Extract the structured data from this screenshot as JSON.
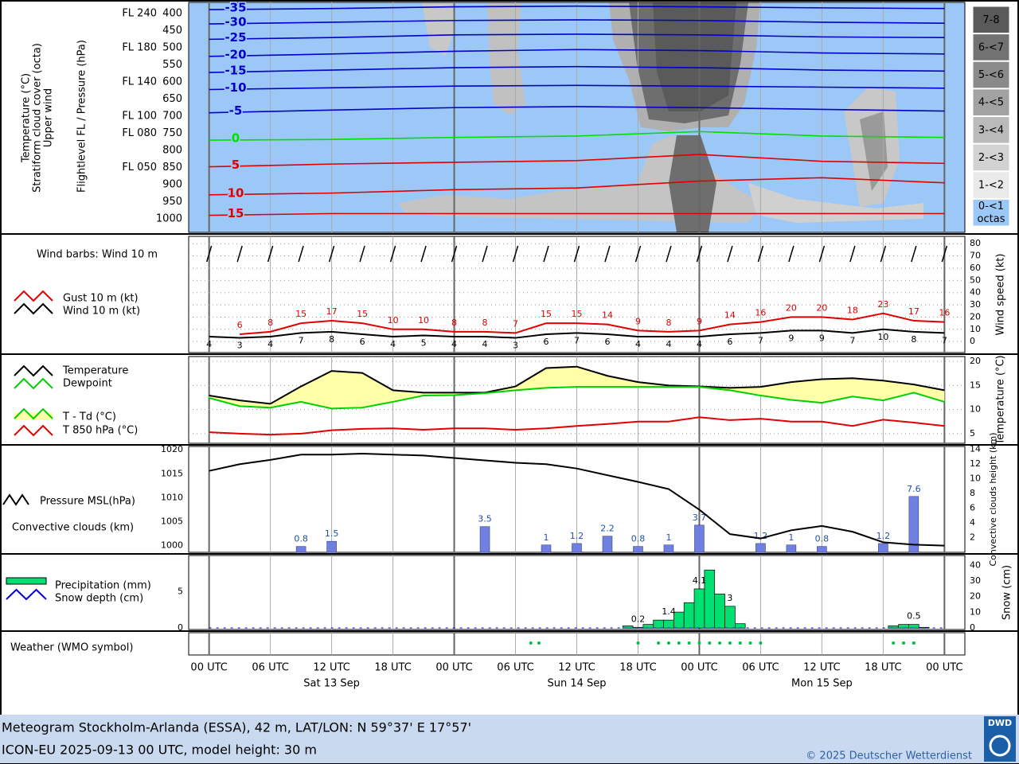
{
  "chart_data": [
    {
      "type": "cross-section",
      "ylabels": [
        "Temperature (°C)",
        "Stratiform cloud cover (octa)",
        "Upper wind"
      ],
      "ylabel2": "Flightlevel FL / Pressure (hPa)",
      "ylim": [
        367,
        1040
      ],
      "yticks": [
        400,
        450,
        500,
        550,
        600,
        650,
        700,
        750,
        800,
        850,
        900,
        950,
        1000
      ],
      "flight_levels": [
        {
          "value": 400,
          "label": "FL 240"
        },
        {
          "value": 500,
          "label": "FL 180"
        },
        {
          "value": 600,
          "label": "FL 140"
        },
        {
          "value": 700,
          "label": "FL 100"
        },
        {
          "value": 750,
          "label": "FL 080"
        },
        {
          "value": 850,
          "label": "FL 050"
        }
      ],
      "x": [
        0,
        12,
        24,
        36,
        48,
        60,
        72
      ],
      "isotherms": [
        {
          "value": -35,
          "color": "#0000c8",
          "values": [
            388,
            385,
            380,
            378,
            380,
            383,
            385
          ]
        },
        {
          "value": -30,
          "color": "#0000c8",
          "values": [
            430,
            425,
            420,
            418,
            420,
            425,
            428
          ]
        },
        {
          "value": -25,
          "color": "#0000c8",
          "values": [
            475,
            470,
            462,
            460,
            462,
            468,
            470
          ]
        },
        {
          "value": -20,
          "color": "#0000c8",
          "values": [
            525,
            518,
            510,
            505,
            508,
            515,
            518
          ]
        },
        {
          "value": -15,
          "color": "#0000c8",
          "values": [
            572,
            565,
            558,
            555,
            558,
            565,
            568
          ]
        },
        {
          "value": -10,
          "color": "#0000c8",
          "values": [
            622,
            617,
            612,
            610,
            612,
            615,
            618
          ]
        },
        {
          "value": -5,
          "color": "#0000c8",
          "values": [
            690,
            682,
            675,
            672,
            675,
            680,
            685
          ]
        },
        {
          "value": 0,
          "color": "#00e000",
          "values": [
            770,
            768,
            762,
            758,
            745,
            758,
            762
          ]
        },
        {
          "value": 5,
          "color": "#e00000",
          "values": [
            848,
            840,
            835,
            830,
            812,
            832,
            838
          ]
        },
        {
          "value": 10,
          "color": "#e00000",
          "values": [
            930,
            925,
            915,
            910,
            890,
            880,
            895
          ]
        },
        {
          "value": 15,
          "color": "#e00000",
          "values": [
            990,
            985,
            985,
            985,
            985,
            985,
            985
          ]
        }
      ],
      "legend": [
        "7-8",
        "6-<7",
        "5-<6",
        "4-<5",
        "3-<4",
        "2-<3",
        "1-<2",
        "0-<1"
      ],
      "legend_colors": [
        "#5a5a5a",
        "#727272",
        "#8a8a8a",
        "#a2a2a2",
        "#bababa",
        "#d2d2d2",
        "#eaeaea",
        "#9cc8f8"
      ],
      "legend_unit": "octas"
    },
    {
      "type": "line",
      "title": "Wind barbs: Wind 10 m",
      "ylabel": "Wind speed (kt)",
      "x": [
        0,
        3,
        6,
        9,
        12,
        15,
        18,
        21,
        24,
        27,
        30,
        33,
        36,
        39,
        42,
        45,
        48,
        51,
        54,
        57,
        60,
        63,
        66,
        69,
        72
      ],
      "ylim": [
        -9,
        86
      ],
      "yticks": [
        0,
        10,
        20,
        30,
        40,
        50,
        60,
        70,
        80
      ],
      "series": [
        {
          "name": "Gust 10 m (kt)",
          "color": "#e00000",
          "x": [
            3,
            6,
            9,
            12,
            15,
            18,
            21,
            24,
            27,
            30,
            33,
            36,
            39,
            42,
            45,
            48,
            51,
            54,
            57,
            60,
            63,
            66,
            69,
            72
          ],
          "values": [
            6,
            8,
            15,
            17,
            15,
            10,
            10,
            8,
            8,
            7,
            15,
            15,
            14,
            9,
            8,
            9,
            14,
            16,
            20,
            20,
            18,
            23,
            17,
            16
          ]
        },
        {
          "name": "Wind 10 m (kt)",
          "color": "#000000",
          "values": [
            4,
            3,
            4,
            7,
            8,
            6,
            4,
            5,
            4,
            4,
            3,
            6,
            7,
            6,
            4,
            4,
            4,
            6,
            7,
            9,
            9,
            7,
            10,
            8,
            7
          ]
        }
      ]
    },
    {
      "type": "line",
      "ylabel": "Temperature (°C)",
      "x": [
        0,
        3,
        6,
        9,
        12,
        15,
        18,
        21,
        24,
        27,
        30,
        33,
        36,
        39,
        42,
        45,
        48,
        51,
        54,
        57,
        60,
        63,
        66,
        69,
        72
      ],
      "ylim": [
        3,
        21
      ],
      "yticks": [
        5,
        10,
        15,
        20
      ],
      "series": [
        {
          "name": "Temperature",
          "color": "#000000",
          "values": [
            12.9,
            11.9,
            11.2,
            14.8,
            18.0,
            17.6,
            14.0,
            13.5,
            13.5,
            13.5,
            14.8,
            18.6,
            18.9,
            17.0,
            15.7,
            15.0,
            14.8,
            14.5,
            14.7,
            15.7,
            16.3,
            16.5,
            16.0,
            15.2,
            14.0
          ]
        },
        {
          "name": "Dewpoint",
          "color": "#00d000",
          "values": [
            12.4,
            10.7,
            10.4,
            11.6,
            10.2,
            10.4,
            11.6,
            12.9,
            13.0,
            13.4,
            14.0,
            14.5,
            14.7,
            14.7,
            14.7,
            14.7,
            14.7,
            14.0,
            12.9,
            12.0,
            11.4,
            12.7,
            11.9,
            13.5,
            11.6
          ]
        },
        {
          "name": "T 850 hPa (°C)",
          "color": "#e00000",
          "values": [
            5.3,
            5.0,
            4.8,
            5.0,
            5.7,
            6.0,
            6.1,
            5.8,
            6.1,
            6.1,
            5.8,
            6.1,
            6.6,
            7.0,
            7.5,
            7.5,
            8.4,
            7.8,
            8.1,
            7.5,
            7.5,
            6.6,
            7.9,
            7.3,
            6.6
          ]
        }
      ],
      "fill": {
        "name": "T - Td (°C)",
        "color": "#ffffa8"
      }
    },
    {
      "type": "line-bar",
      "ylim": [
        998.6,
        1020.7
      ],
      "yticks": [
        1000,
        1005,
        1010,
        1015,
        1020
      ],
      "y2lim": [
        0,
        14.4
      ],
      "y2ticks": [
        2,
        4,
        6,
        8,
        10,
        12,
        14
      ],
      "y2label": "Convective clouds height (km)",
      "x": [
        0,
        3,
        6,
        9,
        12,
        15,
        18,
        21,
        24,
        27,
        30,
        33,
        36,
        39,
        42,
        45,
        48,
        51,
        54,
        57,
        60,
        63,
        66,
        69,
        72
      ],
      "series": [
        {
          "name": "Pressure MSL(hPa)",
          "color": "#000000",
          "values": [
            1015.6,
            1017.0,
            1017.9,
            1019.0,
            1019.0,
            1019.2,
            1019.0,
            1018.8,
            1018.3,
            1017.8,
            1017.3,
            1017.0,
            1016.1,
            1014.7,
            1013.3,
            1011.8,
            1007.5,
            1002.4,
            1001.5,
            1003.2,
            1004.1,
            1002.9,
            1000.7,
            1000.2,
            1000.0
          ]
        },
        {
          "name": "Convective clouds (km)",
          "color": "#7080e0",
          "axis": "y2",
          "x": [
            9,
            12,
            27,
            33,
            36,
            39,
            42,
            45,
            48,
            54,
            57,
            60,
            66,
            69
          ],
          "values": [
            0.8,
            1.5,
            3.5,
            1,
            1.2,
            2.2,
            0.8,
            1,
            3.7,
            1.2,
            1,
            0.8,
            1.2,
            7.6
          ]
        }
      ]
    },
    {
      "type": "bar",
      "ylim": [
        -0.2,
        10
      ],
      "yticks": [
        0,
        5
      ],
      "y2lim": [
        -1,
        46.3
      ],
      "y2ticks": [
        0,
        10,
        20,
        30,
        40
      ],
      "y2label": "Snow (cm)",
      "series": [
        {
          "name": "Precipitation (mm)",
          "color": "#00e070",
          "x": [
            41,
            42,
            43,
            44,
            45,
            46,
            47,
            48,
            49,
            50,
            51,
            52,
            67,
            68,
            69,
            70
          ],
          "values": [
            0.3,
            0.1,
            0.5,
            1.1,
            1.1,
            2.2,
            3.5,
            5.4,
            8.0,
            4.7,
            3.0,
            0.6,
            0.3,
            0.5,
            0.5,
            0.1
          ]
        },
        {
          "name": "Snow depth (cm)",
          "color": "#0000e0",
          "axis": "y2",
          "x": [
            0,
            3,
            6,
            9,
            12,
            15,
            18,
            21,
            24,
            27,
            30,
            33,
            36,
            39,
            42,
            45,
            48,
            51,
            54,
            57,
            60,
            63,
            66,
            69,
            72
          ],
          "values": [
            0,
            0,
            0,
            0,
            0,
            0,
            0,
            0,
            0,
            0,
            0,
            0,
            0,
            0,
            0,
            0,
            0,
            0,
            0,
            0,
            0,
            0,
            0,
            0,
            0
          ]
        }
      ],
      "totals": {
        "x": [
          42,
          45,
          48,
          51,
          69
        ],
        "values": [
          0.2,
          1.4,
          4.1,
          3,
          0.5
        ]
      }
    },
    {
      "type": "symbols",
      "title": "Weather (WMO symbol)",
      "xlim": [
        -2,
        74
      ],
      "xticks": [
        {
          "value": 0,
          "label": "00 UTC"
        },
        {
          "value": 6,
          "label": "06 UTC"
        },
        {
          "value": 12,
          "label": "12 UTC"
        },
        {
          "value": 18,
          "label": "18 UTC"
        },
        {
          "value": 24,
          "label": "00 UTC"
        },
        {
          "value": 30,
          "label": "06 UTC"
        },
        {
          "value": 36,
          "label": "12 UTC"
        },
        {
          "value": 42,
          "label": "18 UTC"
        },
        {
          "value": 48,
          "label": "00 UTC"
        },
        {
          "value": 54,
          "label": "06 UTC"
        },
        {
          "value": 60,
          "label": "12 UTC"
        },
        {
          "value": 66,
          "label": "18 UTC"
        },
        {
          "value": 72,
          "label": "00 UTC"
        }
      ],
      "dates": [
        {
          "value": 12,
          "label": "Sat 13 Sep"
        },
        {
          "value": 36,
          "label": "Sun 14 Sep"
        },
        {
          "value": 60,
          "label": "Mon 15 Sep"
        }
      ]
    }
  ],
  "footer": {
    "line1": "Meteogram Stockholm-Arlanda (ESSA), 42 m, LAT/LON: N 59°37' E 17°57'",
    "line2": "ICON-EU 2025-09-13 00 UTC, model height: 30 m",
    "copyright": "© 2025 Deutscher Wetterdienst",
    "logo": "DWD"
  }
}
